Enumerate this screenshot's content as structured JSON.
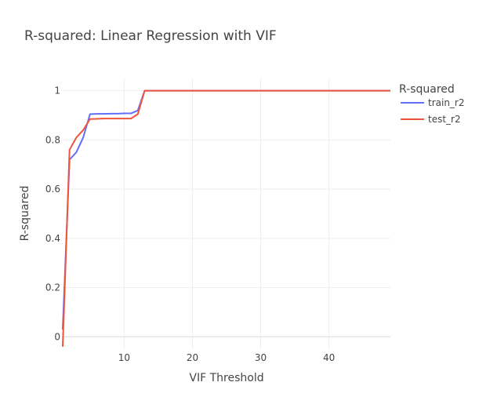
{
  "chart_data": {
    "type": "line",
    "title": "R-squared: Linear Regression with VIF",
    "xlabel": "VIF Threshold",
    "ylabel": "R-squared",
    "xlim": [
      1,
      49
    ],
    "ylim": [
      -0.05,
      1.05
    ],
    "x_ticks": [
      10,
      20,
      30,
      40
    ],
    "y_ticks": [
      0,
      0.2,
      0.4,
      0.6,
      0.8,
      1
    ],
    "grid": true,
    "legend": {
      "title": "R-squared",
      "position": "top-right"
    },
    "series": [
      {
        "name": "train_r2",
        "color": "#636efa",
        "x": [
          1,
          2,
          3,
          4,
          5,
          6,
          7,
          8,
          9,
          10,
          11,
          12,
          13,
          14,
          20,
          30,
          40,
          49
        ],
        "y": [
          0.03,
          0.72,
          0.75,
          0.81,
          0.905,
          0.906,
          0.906,
          0.907,
          0.907,
          0.908,
          0.908,
          0.92,
          1.0,
          1.0,
          1.0,
          1.0,
          1.0,
          1.0
        ]
      },
      {
        "name": "test_r2",
        "color": "#ef553b",
        "x": [
          1,
          2,
          3,
          4,
          5,
          6,
          7,
          8,
          9,
          10,
          11,
          12,
          13,
          14,
          20,
          30,
          40,
          49
        ],
        "y": [
          -0.04,
          0.76,
          0.81,
          0.84,
          0.885,
          0.886,
          0.887,
          0.887,
          0.887,
          0.887,
          0.887,
          0.905,
          1.0,
          1.0,
          1.0,
          1.0,
          1.0,
          1.0
        ]
      }
    ]
  }
}
